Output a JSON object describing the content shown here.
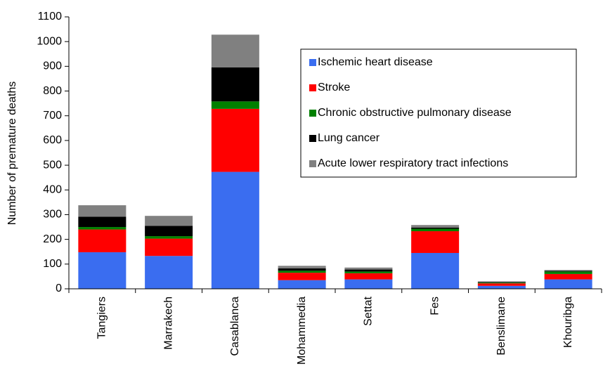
{
  "chart_data": {
    "type": "stacked_bar",
    "y_label": "Number of premature deaths",
    "categories": [
      "Tangiers",
      "Marrakech",
      "Casablanca",
      "Mohammedia",
      "Settat",
      "Fes",
      "Benslimane",
      "Khouribga"
    ],
    "series": [
      {
        "name": "Ischemic heart disease",
        "color": "#3a6df0",
        "values": [
          148,
          133,
          473,
          35,
          38,
          145,
          12,
          38
        ]
      },
      {
        "name": "Stroke",
        "color": "#ff0000",
        "values": [
          92,
          70,
          255,
          30,
          25,
          88,
          10,
          22
        ]
      },
      {
        "name": "Chronic obstructive pulmonary disease",
        "color": "#008000",
        "values": [
          10,
          10,
          30,
          8,
          7,
          10,
          3,
          10
        ]
      },
      {
        "name": "Lung cancer",
        "color": "#000000",
        "values": [
          42,
          42,
          138,
          10,
          8,
          5,
          2,
          3
        ]
      },
      {
        "name": "Acute lower respiratory tract infections",
        "color": "#808080",
        "values": [
          46,
          40,
          132,
          10,
          8,
          10,
          3,
          3
        ]
      }
    ],
    "ylim": [
      0,
      1100
    ],
    "yticks": [
      0,
      100,
      200,
      300,
      400,
      500,
      600,
      700,
      800,
      900,
      1000,
      1100
    ]
  }
}
